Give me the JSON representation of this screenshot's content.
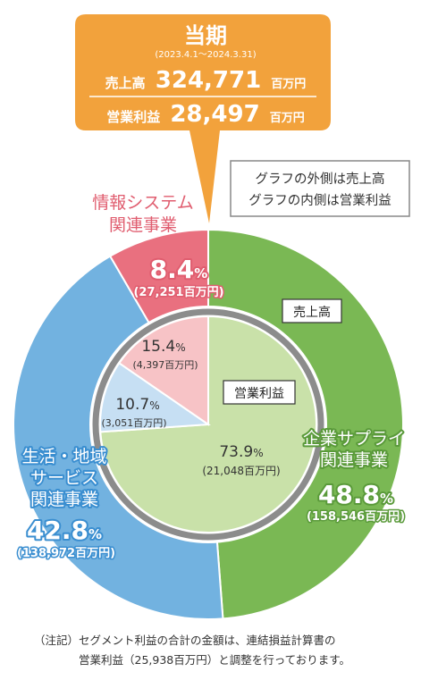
{
  "period": {
    "title": "当期",
    "range": "(2023.4.1～2024.3.31)",
    "sales_label": "売上高",
    "sales_value": "324,771",
    "sales_unit": "百万円",
    "profit_label": "営業利益",
    "profit_value": "28,497",
    "profit_unit": "百万円"
  },
  "legend_note": {
    "line1": "グラフの外側は売上高",
    "line2": "グラフの内側は営業利益"
  },
  "tags": {
    "outer": "売上高",
    "inner": "営業利益"
  },
  "note": {
    "prefix": "（注記）",
    "line1": "セグメント利益の合計の金額は、連結損益計算書の",
    "line2": "営業利益（25,938百万円）と調整を行っております。"
  },
  "colors": {
    "callout": "#f2a23c",
    "enterprise_outer": "#7ab854",
    "lifestyle_outer": "#72b2e0",
    "info_outer": "#e9707f",
    "enterprise_inner": "#c9e1a9",
    "lifestyle_inner": "#c6dff3",
    "info_inner": "#f7c3c6",
    "separator_ring": "#8c8c8c"
  },
  "chart_data": [
    {
      "type": "pie",
      "name": "売上高",
      "slices": [
        {
          "segment": "企業サプライ関連事業",
          "label_lines": [
            "企業サプライ",
            "関連事業"
          ],
          "percent_text": "48.8",
          "pct_sign": "%",
          "amount_text": "(158,546百万円)",
          "percent": 48.8,
          "amount": 158546
        },
        {
          "segment": "生活・地域サービス関連事業",
          "label_lines": [
            "生活・地域",
            "サービス",
            "関連事業"
          ],
          "percent_text": "42.8",
          "pct_sign": "%",
          "amount_text": "(138,972百万円)",
          "percent": 42.8,
          "amount": 138972
        },
        {
          "segment": "情報システム関連事業",
          "label_lines": [
            "情報システム",
            "関連事業"
          ],
          "percent_text": "8.4",
          "pct_sign": "%",
          "amount_text": "(27,251百万円)",
          "percent": 8.4,
          "amount": 27251
        }
      ]
    },
    {
      "type": "pie",
      "name": "営業利益",
      "slices": [
        {
          "segment": "企業サプライ関連事業",
          "percent_text": "73.9",
          "pct_sign": "%",
          "amount_text": "(21,048百万円)",
          "percent": 73.9,
          "amount": 21048
        },
        {
          "segment": "生活・地域サービス関連事業",
          "percent_text": "10.7",
          "pct_sign": "%",
          "amount_text": "(3,051百万円)",
          "percent": 10.7,
          "amount": 3051
        },
        {
          "segment": "情報システム関連事業",
          "percent_text": "15.4",
          "pct_sign": "%",
          "amount_text": "(4,397百万円)",
          "percent": 15.4,
          "amount": 4397
        }
      ]
    }
  ]
}
